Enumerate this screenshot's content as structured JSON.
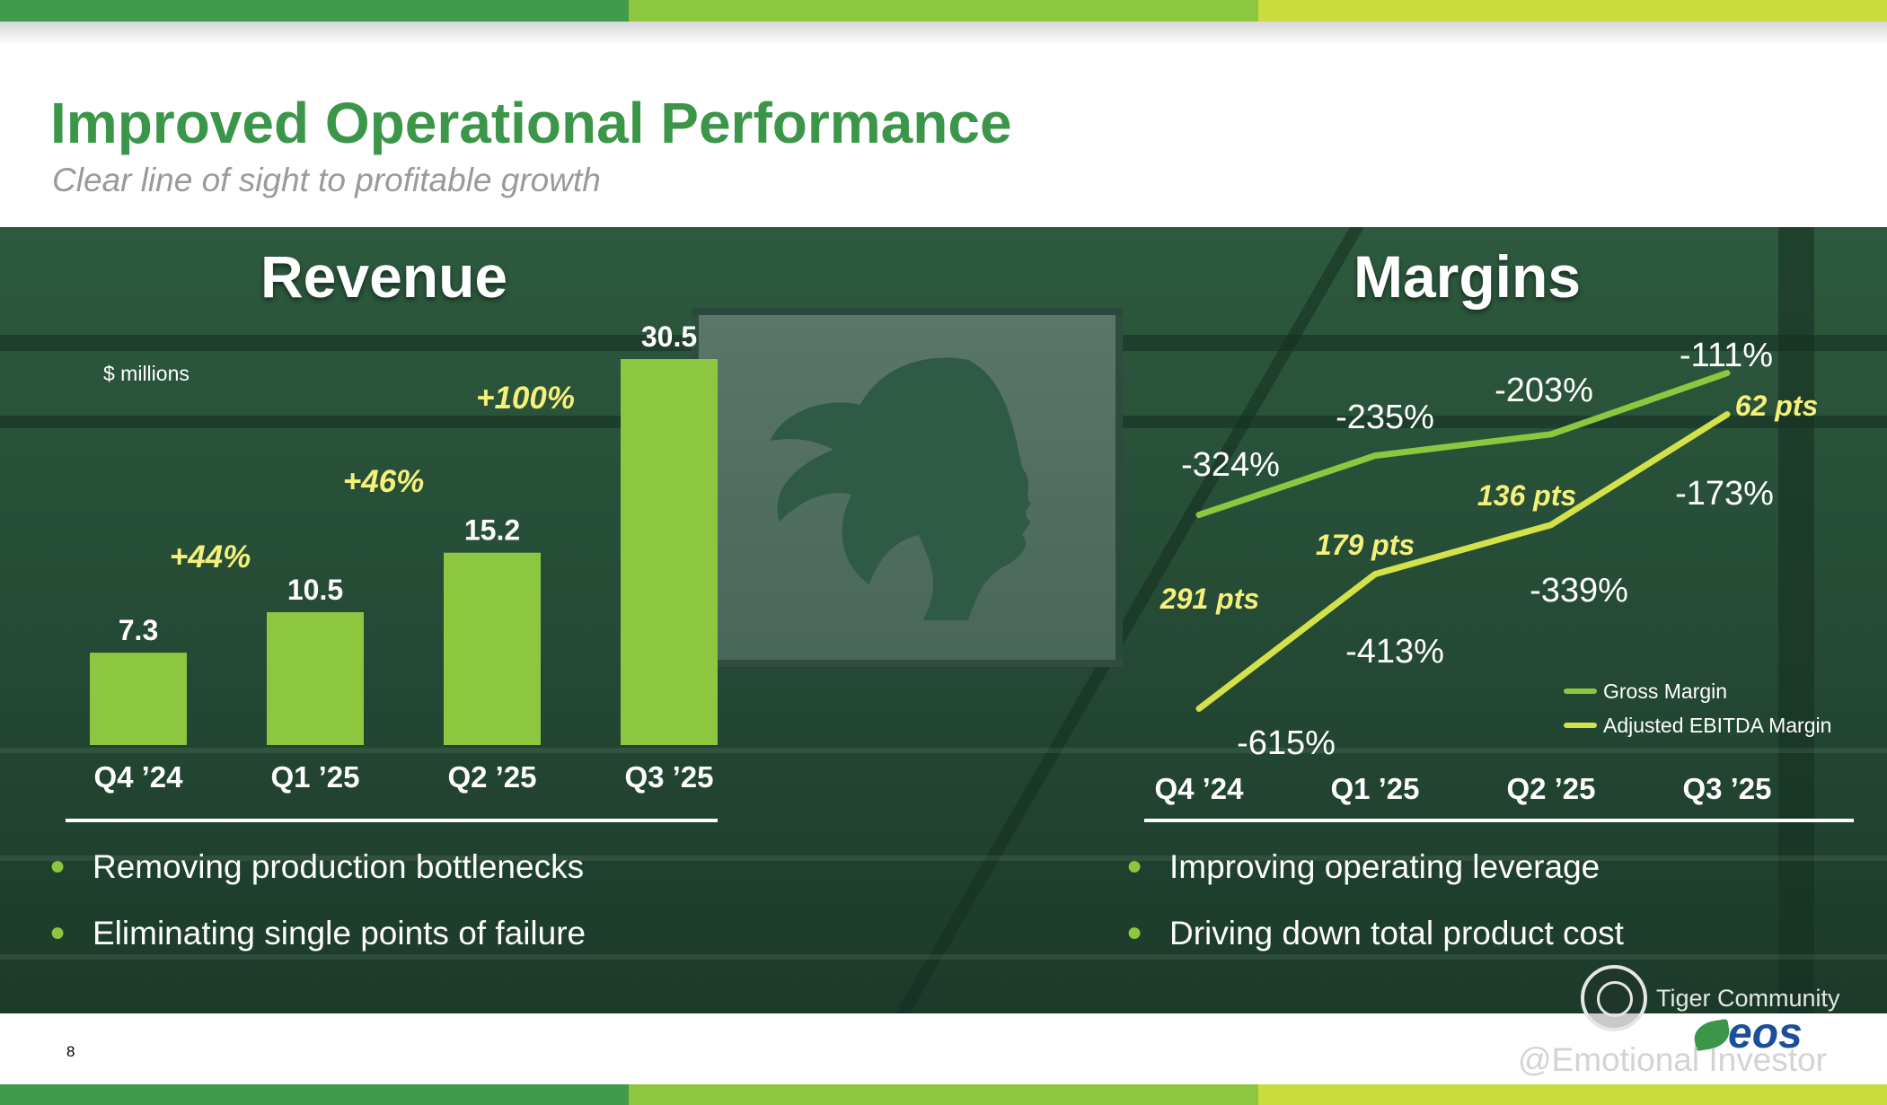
{
  "header": {
    "title": "Improved Operational Performance",
    "subtitle": "Clear line of sight to profitable growth"
  },
  "revenue": {
    "heading": "Revenue",
    "units": "$ millions",
    "bullets": [
      "Removing production bottlenecks",
      "Eliminating single points of failure"
    ]
  },
  "margins": {
    "heading": "Margins",
    "bullets": [
      "Improving operating leverage",
      "Driving down total product cost"
    ]
  },
  "footer": {
    "page_number": "8",
    "badge_text": "Tiger Community",
    "logo_text": "eos",
    "credit": "@Emotional Investor"
  },
  "colors": {
    "brand_green": "#3b9649",
    "bar_green": "#8dc63f",
    "line_yellow": "#d3e24a",
    "callout_yellow": "#f5f07a"
  },
  "chart_data": [
    {
      "type": "bar",
      "title": "Revenue",
      "ylabel": "$ millions",
      "categories": [
        "Q4 ’24",
        "Q1 ’25",
        "Q2 ’25",
        "Q3 ’25"
      ],
      "values": [
        7.3,
        10.5,
        15.2,
        30.5
      ],
      "value_labels": [
        "7.3",
        "10.5",
        "15.2",
        "30.5"
      ],
      "growth_labels": [
        "+44%",
        "+46%",
        "+100%"
      ],
      "ylim": [
        0,
        30.5
      ]
    },
    {
      "type": "line",
      "title": "Margins",
      "categories": [
        "Q4 ’24",
        "Q1 ’25",
        "Q2 ’25",
        "Q3 ’25"
      ],
      "series": [
        {
          "name": "Gross Margin",
          "values": [
            -324,
            -235,
            -203,
            -111
          ],
          "labels": [
            "-324%",
            "-235%",
            "-203%",
            "-111%"
          ],
          "color": "#8dc63f"
        },
        {
          "name": "Adjusted EBITDA Margin",
          "values": [
            -615,
            -413,
            -339,
            -173
          ],
          "labels": [
            "-615%",
            "-413%",
            "-339%",
            "-173%"
          ],
          "color": "#d3e24a"
        }
      ],
      "point_improvements": [
        "291 pts",
        "179 pts",
        "136 pts",
        "62 pts"
      ],
      "ylim": [
        -640,
        -90
      ],
      "legend": "bottom-right",
      "grid": false
    }
  ]
}
